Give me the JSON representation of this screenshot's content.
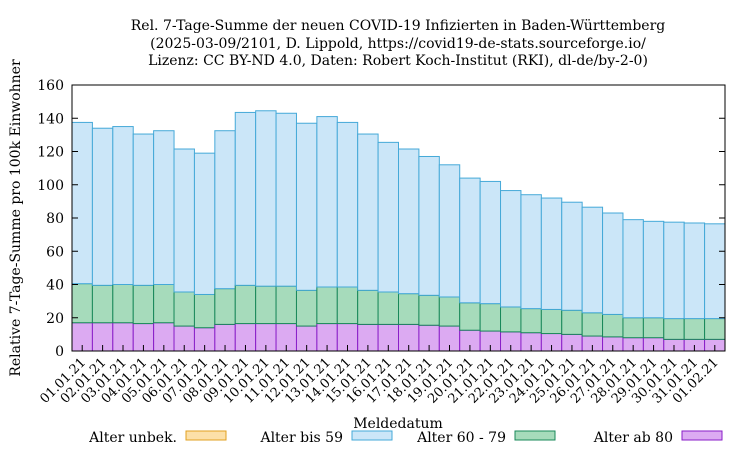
{
  "chart_data": {
    "type": "bar",
    "stacked": true,
    "title_lines": [
      "Rel. 7-Tage-Summe der neuen COVID-19 Infizierten in Baden-Württemberg",
      "(2025-03-09/2101, D. Lippold, https://covid19-de-stats.sourceforge.io/",
      "Lizenz: CC BY-ND 4.0, Daten: Robert Koch-Institut (RKI), dl-de/by-2-0)"
    ],
    "xlabel": "Meldedatum",
    "ylabel": "Relative 7-Tage-Summe pro 100k Einwohner",
    "ylim": [
      0,
      160
    ],
    "yticks": [
      0,
      20,
      40,
      60,
      80,
      100,
      120,
      140,
      160
    ],
    "categories": [
      "01.01.21",
      "02.01.21",
      "03.01.21",
      "04.01.21",
      "05.01.21",
      "06.01.21",
      "07.01.21",
      "08.01.21",
      "09.01.21",
      "10.01.21",
      "11.01.21",
      "12.01.21",
      "13.01.21",
      "14.01.21",
      "15.01.21",
      "16.01.21",
      "17.01.21",
      "18.01.21",
      "19.01.21",
      "20.01.21",
      "21.01.21",
      "22.01.21",
      "23.01.21",
      "24.01.21",
      "25.01.21",
      "26.01.21",
      "27.01.21",
      "28.01.21",
      "29.01.21",
      "30.01.21",
      "31.01.21",
      "01.02.21"
    ],
    "series": [
      {
        "name": "Alter ab 80",
        "fill": "#dcaaf2",
        "stroke": "#8a1ec8",
        "values": [
          17,
          17,
          17,
          16.5,
          17,
          15,
          14,
          16,
          16.5,
          16.5,
          16.5,
          15,
          16.5,
          16.5,
          16,
          16,
          16,
          15.5,
          15,
          12.5,
          12,
          11.5,
          11,
          10.5,
          10,
          9,
          8.5,
          8,
          8,
          7,
          7,
          7
        ]
      },
      {
        "name": "Alter 60 - 79",
        "fill": "#a6dbbb",
        "stroke": "#19885a",
        "values": [
          23.5,
          22.5,
          23,
          23,
          23,
          20.5,
          20,
          21.5,
          23,
          22.5,
          22.5,
          21.5,
          22,
          22,
          20.5,
          19.5,
          18.5,
          18,
          17.5,
          16.5,
          16.5,
          15,
          14.5,
          14.5,
          14.5,
          14,
          13.5,
          12,
          12,
          12.5,
          12.5,
          12.5
        ]
      },
      {
        "name": "Alter bis 59",
        "fill": "#cbe6f8",
        "stroke": "#45a9d8",
        "values": [
          97,
          94.5,
          95,
          91,
          92.5,
          86,
          85,
          95,
          104,
          105.5,
          104,
          100.5,
          102.5,
          99,
          94,
          90,
          87,
          83.5,
          79.5,
          75,
          73.5,
          70,
          68.5,
          67,
          65,
          63.5,
          61,
          59,
          58,
          58,
          57.5,
          57
        ]
      },
      {
        "name": "Alter unbek.",
        "fill": "#fce0a8",
        "stroke": "#e2a020",
        "values": [
          0,
          0,
          0,
          0,
          0,
          0,
          0,
          0,
          0,
          0,
          0,
          0,
          0,
          0,
          0,
          0,
          0,
          0,
          0,
          0,
          0,
          0,
          0,
          0,
          0,
          0,
          0,
          0,
          0,
          0,
          0,
          0
        ]
      }
    ],
    "legend_order": [
      "Alter unbek.",
      "Alter bis 59",
      "Alter 60 - 79",
      "Alter ab 80"
    ],
    "legend_position": "bottom",
    "grid": false
  }
}
